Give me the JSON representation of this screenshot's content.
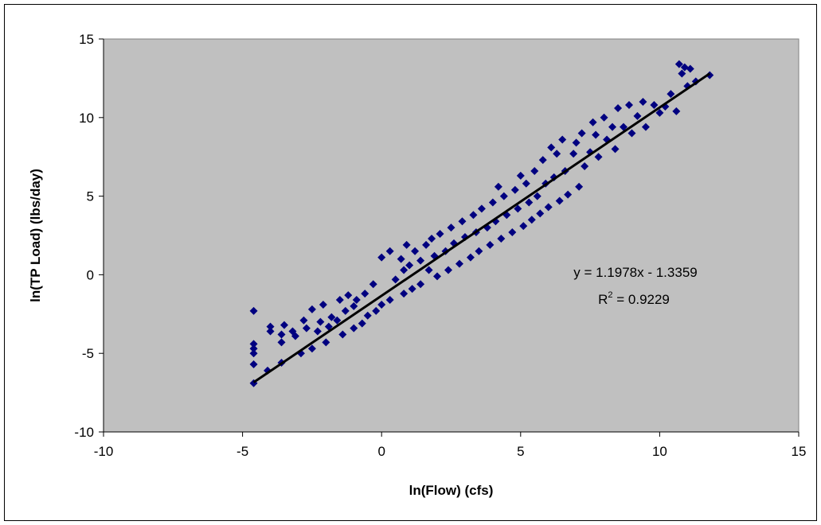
{
  "chart_data": {
    "type": "scatter",
    "xlabel": "ln(Flow) (cfs)",
    "ylabel": "ln(TP Load) (lbs/day)",
    "xlim": [
      -10,
      15
    ],
    "ylim": [
      -10,
      15
    ],
    "x_ticks": [
      -10,
      -5,
      0,
      5,
      10,
      15
    ],
    "y_ticks": [
      -10,
      -5,
      0,
      5,
      10,
      15
    ],
    "grid": false,
    "colors": {
      "plot_area": "#c0c0c0",
      "marker": "#000080",
      "trendline": "#000000"
    },
    "marker_shape": "diamond",
    "trendline": {
      "slope": 1.1978,
      "intercept": -1.3359,
      "x_range": [
        -4.6,
        11.8
      ],
      "equation_label": "y = 1.1978x - 1.3359",
      "r2_prefix": "R",
      "r2_exponent": "2",
      "r2_suffix": " = 0.9229"
    },
    "points": [
      [
        -4.6,
        -6.9
      ],
      [
        -4.6,
        -5.7
      ],
      [
        -4.6,
        -5.0
      ],
      [
        -4.6,
        -4.7
      ],
      [
        -4.6,
        -4.4
      ],
      [
        -4.6,
        -2.3
      ],
      [
        -4.1,
        -6.1
      ],
      [
        -4.0,
        -3.6
      ],
      [
        -4.0,
        -3.3
      ],
      [
        -3.6,
        -5.6
      ],
      [
        -3.6,
        -4.3
      ],
      [
        -3.6,
        -3.8
      ],
      [
        -3.5,
        -3.2
      ],
      [
        -3.2,
        -3.6
      ],
      [
        -3.1,
        -3.9
      ],
      [
        -2.9,
        -5.0
      ],
      [
        -2.8,
        -2.9
      ],
      [
        -2.7,
        -3.4
      ],
      [
        -2.5,
        -4.7
      ],
      [
        -2.5,
        -2.2
      ],
      [
        -2.3,
        -3.6
      ],
      [
        -2.2,
        -3.0
      ],
      [
        -2.1,
        -1.9
      ],
      [
        -2.0,
        -4.3
      ],
      [
        -1.9,
        -3.3
      ],
      [
        -1.8,
        -2.7
      ],
      [
        -1.6,
        -2.9
      ],
      [
        -1.5,
        -1.6
      ],
      [
        -1.4,
        -3.8
      ],
      [
        -1.3,
        -2.3
      ],
      [
        -1.2,
        -1.3
      ],
      [
        -1.0,
        -3.4
      ],
      [
        -1.0,
        -2.0
      ],
      [
        -0.9,
        -1.6
      ],
      [
        -0.7,
        -3.1
      ],
      [
        -0.6,
        -1.2
      ],
      [
        -0.5,
        -2.6
      ],
      [
        -0.3,
        -0.6
      ],
      [
        -0.2,
        -2.3
      ],
      [
        0.0,
        1.1
      ],
      [
        0.0,
        -1.9
      ],
      [
        0.3,
        1.5
      ],
      [
        0.3,
        -1.6
      ],
      [
        0.5,
        -0.3
      ],
      [
        0.7,
        1.0
      ],
      [
        0.8,
        0.3
      ],
      [
        0.8,
        -1.2
      ],
      [
        0.9,
        1.9
      ],
      [
        1.0,
        0.6
      ],
      [
        1.1,
        -0.9
      ],
      [
        1.2,
        1.5
      ],
      [
        1.4,
        0.9
      ],
      [
        1.4,
        -0.6
      ],
      [
        1.6,
        1.9
      ],
      [
        1.7,
        0.3
      ],
      [
        1.8,
        2.3
      ],
      [
        1.9,
        1.2
      ],
      [
        2.0,
        -0.1
      ],
      [
        2.1,
        2.6
      ],
      [
        2.3,
        1.5
      ],
      [
        2.4,
        0.3
      ],
      [
        2.5,
        3.0
      ],
      [
        2.6,
        2.0
      ],
      [
        2.8,
        0.7
      ],
      [
        2.9,
        3.4
      ],
      [
        3.0,
        2.4
      ],
      [
        3.2,
        1.1
      ],
      [
        3.3,
        3.8
      ],
      [
        3.4,
        2.7
      ],
      [
        3.5,
        1.5
      ],
      [
        3.6,
        4.2
      ],
      [
        3.8,
        3.0
      ],
      [
        3.9,
        1.9
      ],
      [
        4.0,
        4.6
      ],
      [
        4.1,
        3.4
      ],
      [
        4.2,
        5.6
      ],
      [
        4.3,
        2.3
      ],
      [
        4.4,
        5.0
      ],
      [
        4.5,
        3.8
      ],
      [
        4.7,
        2.7
      ],
      [
        4.8,
        5.4
      ],
      [
        4.9,
        4.2
      ],
      [
        5.0,
        6.3
      ],
      [
        5.1,
        3.1
      ],
      [
        5.2,
        5.8
      ],
      [
        5.3,
        4.6
      ],
      [
        5.4,
        3.5
      ],
      [
        5.5,
        6.6
      ],
      [
        5.6,
        5.0
      ],
      [
        5.7,
        3.9
      ],
      [
        5.8,
        7.3
      ],
      [
        5.9,
        5.8
      ],
      [
        6.0,
        4.3
      ],
      [
        6.1,
        8.1
      ],
      [
        6.2,
        6.2
      ],
      [
        6.3,
        7.7
      ],
      [
        6.4,
        4.7
      ],
      [
        6.5,
        8.6
      ],
      [
        6.6,
        6.6
      ],
      [
        6.7,
        5.1
      ],
      [
        6.9,
        7.7
      ],
      [
        7.0,
        8.4
      ],
      [
        7.1,
        5.6
      ],
      [
        7.2,
        9.0
      ],
      [
        7.3,
        6.9
      ],
      [
        7.5,
        7.8
      ],
      [
        7.6,
        9.7
      ],
      [
        7.7,
        8.9
      ],
      [
        7.8,
        7.5
      ],
      [
        8.0,
        10.0
      ],
      [
        8.1,
        8.6
      ],
      [
        8.3,
        9.4
      ],
      [
        8.4,
        8.0
      ],
      [
        8.5,
        10.6
      ],
      [
        8.7,
        9.4
      ],
      [
        8.9,
        10.8
      ],
      [
        9.0,
        9.0
      ],
      [
        9.2,
        10.1
      ],
      [
        9.4,
        11.0
      ],
      [
        9.5,
        9.4
      ],
      [
        9.8,
        10.8
      ],
      [
        10.0,
        10.3
      ],
      [
        10.2,
        10.7
      ],
      [
        10.4,
        11.5
      ],
      [
        10.6,
        10.4
      ],
      [
        10.7,
        13.4
      ],
      [
        10.8,
        12.8
      ],
      [
        10.9,
        13.2
      ],
      [
        11.0,
        12.0
      ],
      [
        11.1,
        13.1
      ],
      [
        11.3,
        12.3
      ],
      [
        11.8,
        12.7
      ]
    ]
  }
}
